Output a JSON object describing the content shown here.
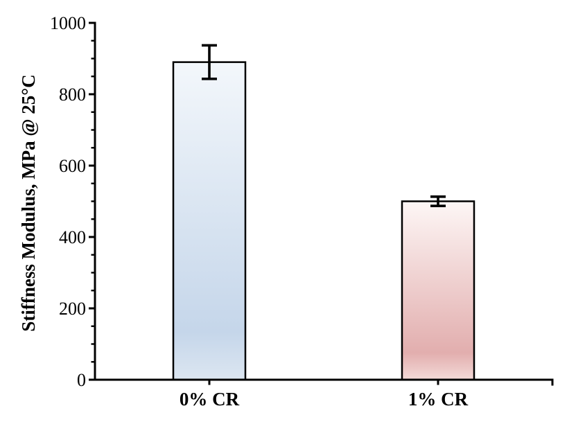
{
  "chart_data": {
    "type": "bar",
    "title": "",
    "ylabel": "Stiffness Modulus, MPa @ 25°C",
    "xlabel": "",
    "categories": [
      "0% CR",
      "1% CR"
    ],
    "values": [
      890,
      500
    ],
    "error_bars": [
      47,
      13
    ],
    "ylim": [
      0,
      1000
    ],
    "yticks": [
      0,
      200,
      400,
      600,
      800,
      1000
    ],
    "ytick_labels": [
      "0",
      "200",
      "400",
      "600",
      "800",
      "1000"
    ],
    "ytick_minor_step": 50,
    "grid": false,
    "legend": "none",
    "background": "#ffffff",
    "axis_color": "#000000",
    "error_bar_color": "#000000",
    "bars": [
      {
        "category": "0% CR",
        "value": 890,
        "error": 47,
        "fill_top": "#f3f7fb",
        "fill_bottom": "#c5d6ea",
        "fill_edge_tail": "#dce6f1",
        "border": "#000000"
      },
      {
        "category": "1% CR",
        "value": 500,
        "error": 13,
        "fill_top": "#fdf6f5",
        "fill_bottom": "#e2aeae",
        "fill_edge_tail": "#f3dad8",
        "border": "#000000"
      }
    ]
  }
}
